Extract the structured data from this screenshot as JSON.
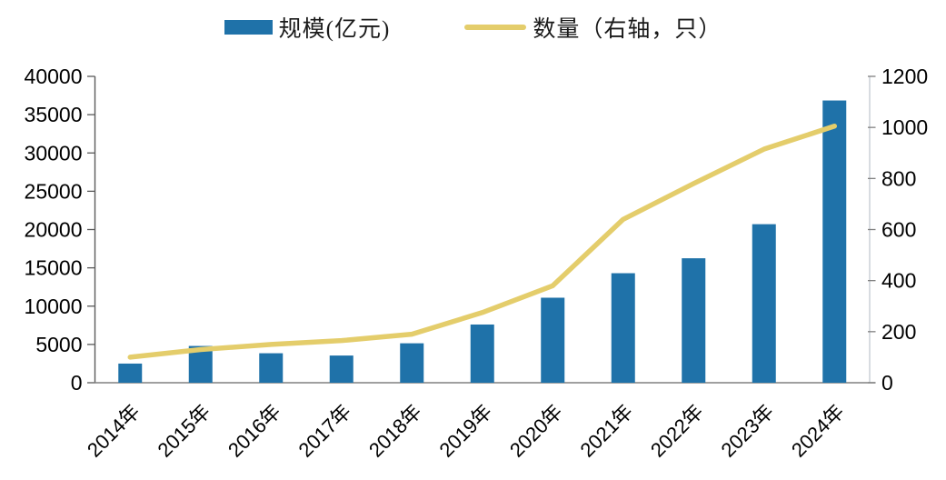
{
  "legend": {
    "bar_label": "规模(亿元)",
    "line_label": "数量（右轴，只）"
  },
  "colors": {
    "bar": "#1F72A9",
    "line": "#E4CD6B",
    "axis_left": "#595959",
    "axis_bottom": "#808080",
    "axis_right": "#C8CED4",
    "tick_text": "#000000"
  },
  "chart_data": {
    "type": "bar+line combo",
    "title": "",
    "categories": [
      "2014年",
      "2015年",
      "2016年",
      "2017年",
      "2018年",
      "2019年",
      "2020年",
      "2021年",
      "2022年",
      "2023年",
      "2024年"
    ],
    "series": [
      {
        "name": "规模(亿元)",
        "type": "bar",
        "axis": "left",
        "values": [
          2500,
          4800,
          3850,
          3550,
          5150,
          7600,
          11100,
          14300,
          16250,
          20700,
          36850
        ]
      },
      {
        "name": "数量（右轴，只）",
        "type": "line",
        "axis": "right",
        "values": [
          100,
          130,
          150,
          165,
          190,
          275,
          380,
          640,
          780,
          915,
          1005
        ]
      }
    ],
    "left_axis": {
      "min": 0,
      "max": 40000,
      "ticks": [
        0,
        5000,
        10000,
        15000,
        20000,
        25000,
        30000,
        35000,
        40000
      ]
    },
    "right_axis": {
      "min": 0,
      "max": 1200,
      "ticks": [
        0,
        200,
        400,
        600,
        800,
        1000,
        1200
      ]
    },
    "grid": false,
    "legend_position": "top-center",
    "x_label_rotation_deg": -45
  }
}
